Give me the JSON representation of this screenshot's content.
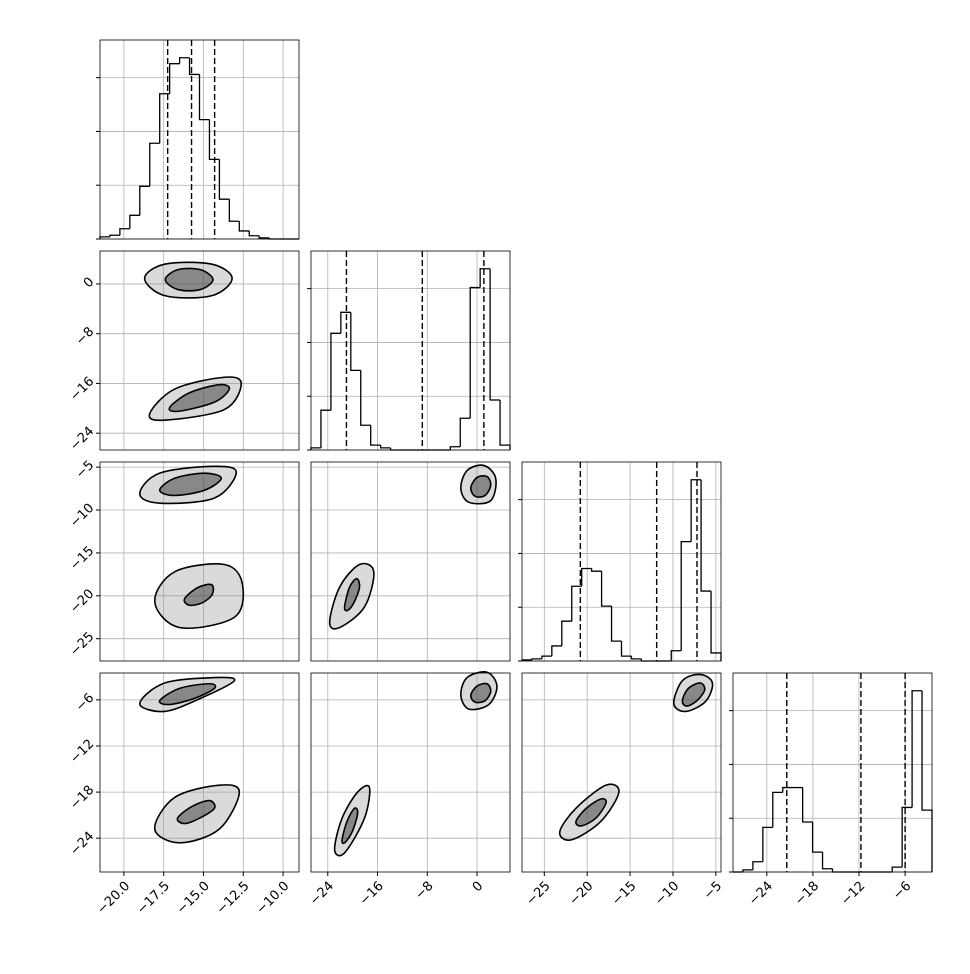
{
  "chart_data": {
    "type": "corner",
    "params": [
      {
        "lim": [
          -21.5,
          -9.0
        ],
        "ticks": [
          {
            "value": -20,
            "label": "−20.0"
          },
          {
            "value": -17.5,
            "label": "−17.5"
          },
          {
            "value": -15,
            "label": "−15.0"
          },
          {
            "value": -12.5,
            "label": "−12.5"
          },
          {
            "value": -10,
            "label": "−10.0"
          }
        ]
      },
      {
        "lim": [
          -26.7,
          5.3
        ],
        "ticks": [
          {
            "value": -24,
            "label": "−24"
          },
          {
            "value": -16,
            "label": "−16"
          },
          {
            "value": -8,
            "label": "−8"
          },
          0
        ]
      },
      {
        "lim": [
          -27.6,
          -4.4
        ],
        "ticks": [
          {
            "value": -25,
            "label": "−25"
          },
          {
            "value": -20,
            "label": "−20"
          },
          {
            "value": -15,
            "label": "−15"
          },
          {
            "value": -10,
            "label": "−10"
          },
          {
            "value": -5,
            "label": "−5"
          }
        ]
      },
      {
        "lim": [
          -28.4,
          -2.5
        ],
        "ticks": [
          {
            "value": -24,
            "label": "−24"
          },
          {
            "value": -18,
            "label": "−18"
          },
          {
            "value": -12,
            "label": "−12"
          },
          {
            "value": -6,
            "label": "−6"
          }
        ]
      }
    ],
    "histograms": [
      {
        "bins": [
          -21.5,
          -20.875,
          -20.25,
          -19.625,
          -19,
          -18.375,
          -17.75,
          -17.125,
          -16.5,
          -15.875,
          -15.25,
          -14.625,
          -14,
          -13.375,
          -12.75,
          -12.125,
          -11.5,
          -10.875,
          -10.25,
          -9.625,
          -9
        ],
        "values": [
          0.04,
          0.07,
          0.19,
          0.44,
          0.98,
          1.78,
          2.7,
          3.26,
          3.37,
          3.06,
          2.22,
          1.48,
          0.74,
          0.33,
          0.15,
          0.06,
          0.02,
          0,
          0,
          0
        ],
        "quantiles": [
          -17.25,
          -15.75,
          -14.3
        ],
        "ylim": [
          0,
          3.7
        ],
        "yticks": [
          0,
          1,
          2,
          3
        ]
      },
      {
        "bins": [
          -26.7,
          -25.1,
          -23.5,
          -21.9,
          -20.3,
          -18.7,
          -17.1,
          -15.5,
          -13.9,
          -12.3,
          -10.7,
          -9.1,
          -7.5,
          -5.9,
          -4.3,
          -2.7,
          -1.1,
          0.5,
          2.1,
          3.7,
          5.3
        ],
        "values": [
          0.04,
          0.74,
          2.17,
          2.56,
          1.48,
          0.46,
          0.09,
          0.04,
          0,
          0,
          0,
          0,
          0,
          0,
          0.06,
          0.59,
          3.02,
          3.37,
          0.93,
          0.09
        ],
        "quantiles": [
          -21.0,
          -8.8,
          1.1
        ],
        "ylim": [
          0,
          3.7
        ],
        "yticks": [
          0,
          1,
          2,
          3
        ]
      },
      {
        "bins": [
          -27.6,
          -26.44,
          -25.28,
          -24.12,
          -22.96,
          -21.8,
          -20.64,
          -19.48,
          -18.32,
          -17.16,
          -16,
          -14.84,
          -13.68,
          -12.52,
          -11.36,
          -10.2,
          -9.04,
          -7.88,
          -6.72,
          -5.56,
          -4.4
        ],
        "values": [
          0.02,
          0.04,
          0.09,
          0.28,
          0.74,
          1.39,
          1.72,
          1.67,
          1.02,
          0.37,
          0.09,
          0.04,
          0,
          0,
          0,
          0.19,
          2.22,
          3.37,
          1.3,
          0.15
        ],
        "quantiles": [
          -20.8,
          -11.9,
          -7.2
        ],
        "ylim": [
          0,
          3.7
        ],
        "yticks": [
          0,
          1,
          2,
          3
        ]
      },
      {
        "bins": [
          -28.4,
          -27.105,
          -25.81,
          -24.515,
          -23.22,
          -21.925,
          -20.63,
          -19.335,
          -18.04,
          -16.745,
          -15.45,
          -14.155,
          -12.86,
          -11.565,
          -10.27,
          -8.975,
          -7.68,
          -6.385,
          -5.09,
          -3.795,
          -2.5
        ],
        "values": [
          0,
          0.04,
          0.19,
          0.83,
          1.48,
          1.57,
          1.57,
          0.93,
          0.37,
          0.06,
          0,
          0,
          0,
          0,
          0,
          0,
          0.09,
          1.2,
          3.37,
          1.15
        ],
        "quantiles": [
          -21.4,
          -11.75,
          -6.0
        ],
        "ylim": [
          0,
          3.7
        ],
        "yticks": [
          0,
          1,
          2,
          3
        ]
      }
    ],
    "pairs": [
      {
        "blobs": [
          {
            "contours": [
              {
                "x": [
                  -18.7,
                  -17.4,
                  -14.5,
                  -13.2,
                  -14.5,
                  -17.4
                ],
                "y": [
                  0.9,
                  3.2,
                  3.2,
                  0.9,
                  -1.9,
                  -1.9
                ]
              },
              {
                "x": [
                  -17.4,
                  -16.6,
                  -15.2,
                  -14.4,
                  -15.2,
                  -16.6
                ],
                "y": [
                  0.7,
                  2.3,
                  2.3,
                  0.7,
                  -0.9,
                  -0.9
                ]
              }
            ]
          },
          {
            "contours": [
              {
                "x": [
                  -18.38,
                  -16.81,
                  -13.69,
                  -12.63,
                  -13.69,
                  -17.44
                ],
                "y": [
                  -20.9,
                  -16.9,
                  -15.0,
                  -16.0,
                  -20.2,
                  -21.9
                ]
              },
              {
                "x": [
                  -17.13,
                  -15.88,
                  -14.0,
                  -13.38,
                  -14.31,
                  -16.5
                ],
                "y": [
                  -19.9,
                  -17.5,
                  -16.2,
                  -16.9,
                  -19.0,
                  -20.45
                ]
              }
            ]
          }
        ]
      },
      {
        "blobs": [
          {
            "contours": [
              {
                "x": [
                  -19.0,
                  -17.75,
                  -14.31,
                  -12.94,
                  -14.31,
                  -17.75
                ],
                "y": [
                  -8.1,
                  -5.7,
                  -4.9,
                  -5.6,
                  -8.6,
                  -9.2
                ]
              },
              {
                "x": [
                  -17.75,
                  -16.81,
                  -14.94,
                  -13.88,
                  -14.94,
                  -16.81
                ],
                "y": [
                  -7.7,
                  -6.3,
                  -5.7,
                  -6.3,
                  -7.7,
                  -8.3
                ]
              }
            ]
          },
          {
            "contours": [
              {
                "x": [
                  -18.06,
                  -16.81,
                  -13.69,
                  -12.56,
                  -13.06,
                  -16.5
                ],
                "y": [
                  -20.7,
                  -17.2,
                  -16.35,
                  -18.6,
                  -22.5,
                  -23.7
                ]
              },
              {
                "x": [
                  -16.19,
                  -15.38,
                  -14.5,
                  -14.44,
                  -15.06,
                  -15.88
                ],
                "y": [
                  -20.36,
                  -19.06,
                  -18.7,
                  -19.8,
                  -20.8,
                  -21.1
                ]
              }
            ]
          }
        ]
      },
      {
        "blobs": [
          {
            "contours": [
              {
                "x": [
                  -2.6,
                  -1.6,
                  1.1,
                  3.0,
                  2.2,
                  -1.3
                ],
                "y": [
                  -7.5,
                  -5.4,
                  -4.8,
                  -6.3,
                  -8.9,
                  -9.1
                ]
              },
              {
                "x": [
                  -1.0,
                  0.0,
                  1.6,
                  2.2,
                  1.3,
                  -0.3
                ],
                "y": [
                  -7.4,
                  -6.2,
                  -6.1,
                  -7.1,
                  -8.3,
                  -8.4
                ]
              }
            ]
          },
          {
            "contours": [
              {
                "x": [
                  -23.7,
                  -22.1,
                  -18.9,
                  -16.6,
                  -18.1,
                  -22.1
                ],
                "y": [
                  -23.1,
                  -19.0,
                  -16.35,
                  -17.2,
                  -21.3,
                  -23.7
                ]
              },
              {
                "x": [
                  -21.3,
                  -20.5,
                  -19.35,
                  -18.9,
                  -19.8,
                  -20.8
                ],
                "y": [
                  -21.3,
                  -19.0,
                  -18.0,
                  -19.0,
                  -20.8,
                  -21.7
                ]
              }
            ]
          }
        ]
      },
      {
        "blobs": [
          {
            "contours": [
              {
                "x": [
                  -19.0,
                  -17.44,
                  -14.31,
                  -13.06,
                  -15.19,
                  -17.44
                ],
                "y": [
                  -6.5,
                  -3.8,
                  -3.1,
                  -3.5,
                  -5.8,
                  -7.5
                ]
              },
              {
                "x": [
                  -17.75,
                  -16.5,
                  -14.63,
                  -14.31,
                  -15.56,
                  -17.13
                ],
                "y": [
                  -6.1,
                  -4.5,
                  -3.9,
                  -4.5,
                  -5.8,
                  -6.6
                ]
              }
            ]
          },
          {
            "contours": [
              {
                "x": [
                  -18.06,
                  -16.81,
                  -14.0,
                  -12.75,
                  -14.0,
                  -16.5
                ],
                "y": [
                  -22.8,
                  -18.7,
                  -17.1,
                  -18.0,
                  -22.8,
                  -24.6
                ]
              },
              {
                "x": [
                  -16.63,
                  -15.75,
                  -14.63,
                  -14.31,
                  -15.25,
                  -16.19
                ],
                "y": [
                  -21.4,
                  -19.9,
                  -19.1,
                  -20.1,
                  -21.4,
                  -22.1
                ]
              }
            ]
          }
        ]
      },
      {
        "blobs": [
          {
            "contours": [
              {
                "x": [
                  -2.6,
                  -1.6,
                  1.6,
                  3.2,
                  1.9,
                  -1.3
                ],
                "y": [
                  -5.4,
                  -3.1,
                  -2.4,
                  -4.2,
                  -6.6,
                  -7.2
                ]
              },
              {
                "x": [
                  -1.0,
                  0.0,
                  1.6,
                  2.2,
                  1.3,
                  -0.3
                ],
                "y": [
                  -5.4,
                  -4.2,
                  -3.9,
                  -4.9,
                  -6.1,
                  -6.3
                ]
              }
            ]
          },
          {
            "contours": [
              {
                "x": [
                  -22.9,
                  -21.7,
                  -19.2,
                  -17.3,
                  -18.1,
                  -21.3
                ],
                "y": [
                  -25.5,
                  -21.4,
                  -18.0,
                  -17.4,
                  -21.4,
                  -25.9
                ]
              },
              {
                "x": [
                  -21.7,
                  -20.9,
                  -19.7,
                  -19.2,
                  -20.1,
                  -21.3
                ],
                "y": [
                  -24.2,
                  -21.8,
                  -20.1,
                  -20.8,
                  -23.2,
                  -24.6
                ]
              }
            ]
          }
        ]
      },
      {
        "blobs": [
          {
            "contours": [
              {
                "x": [
                  -9.9,
                  -8.9,
                  -6.8,
                  -5.4,
                  -6.2,
                  -8.5
                ],
                "y": [
                  -6.5,
                  -3.5,
                  -2.7,
                  -3.8,
                  -6.2,
                  -7.5
                ]
              },
              {
                "x": [
                  -8.9,
                  -8.2,
                  -6.8,
                  -6.3,
                  -7.2,
                  -8.4
                ],
                "y": [
                  -6.1,
                  -4.5,
                  -3.8,
                  -4.7,
                  -6.1,
                  -6.8
                ]
              }
            ]
          },
          {
            "contours": [
              {
                "x": [
                  -23.2,
                  -21.3,
                  -17.8,
                  -16.3,
                  -18.4,
                  -21.8
                ],
                "y": [
                  -23.2,
                  -20.1,
                  -17.1,
                  -18.0,
                  -21.8,
                  -24.2
                ]
              },
              {
                "x": [
                  -21.3,
                  -20.1,
                  -18.4,
                  -17.8,
                  -19.0,
                  -20.7
                ],
                "y": [
                  -21.8,
                  -20.1,
                  -18.9,
                  -19.4,
                  -21.4,
                  -22.4
                ]
              }
            ]
          }
        ]
      }
    ],
    "grid": true
  }
}
